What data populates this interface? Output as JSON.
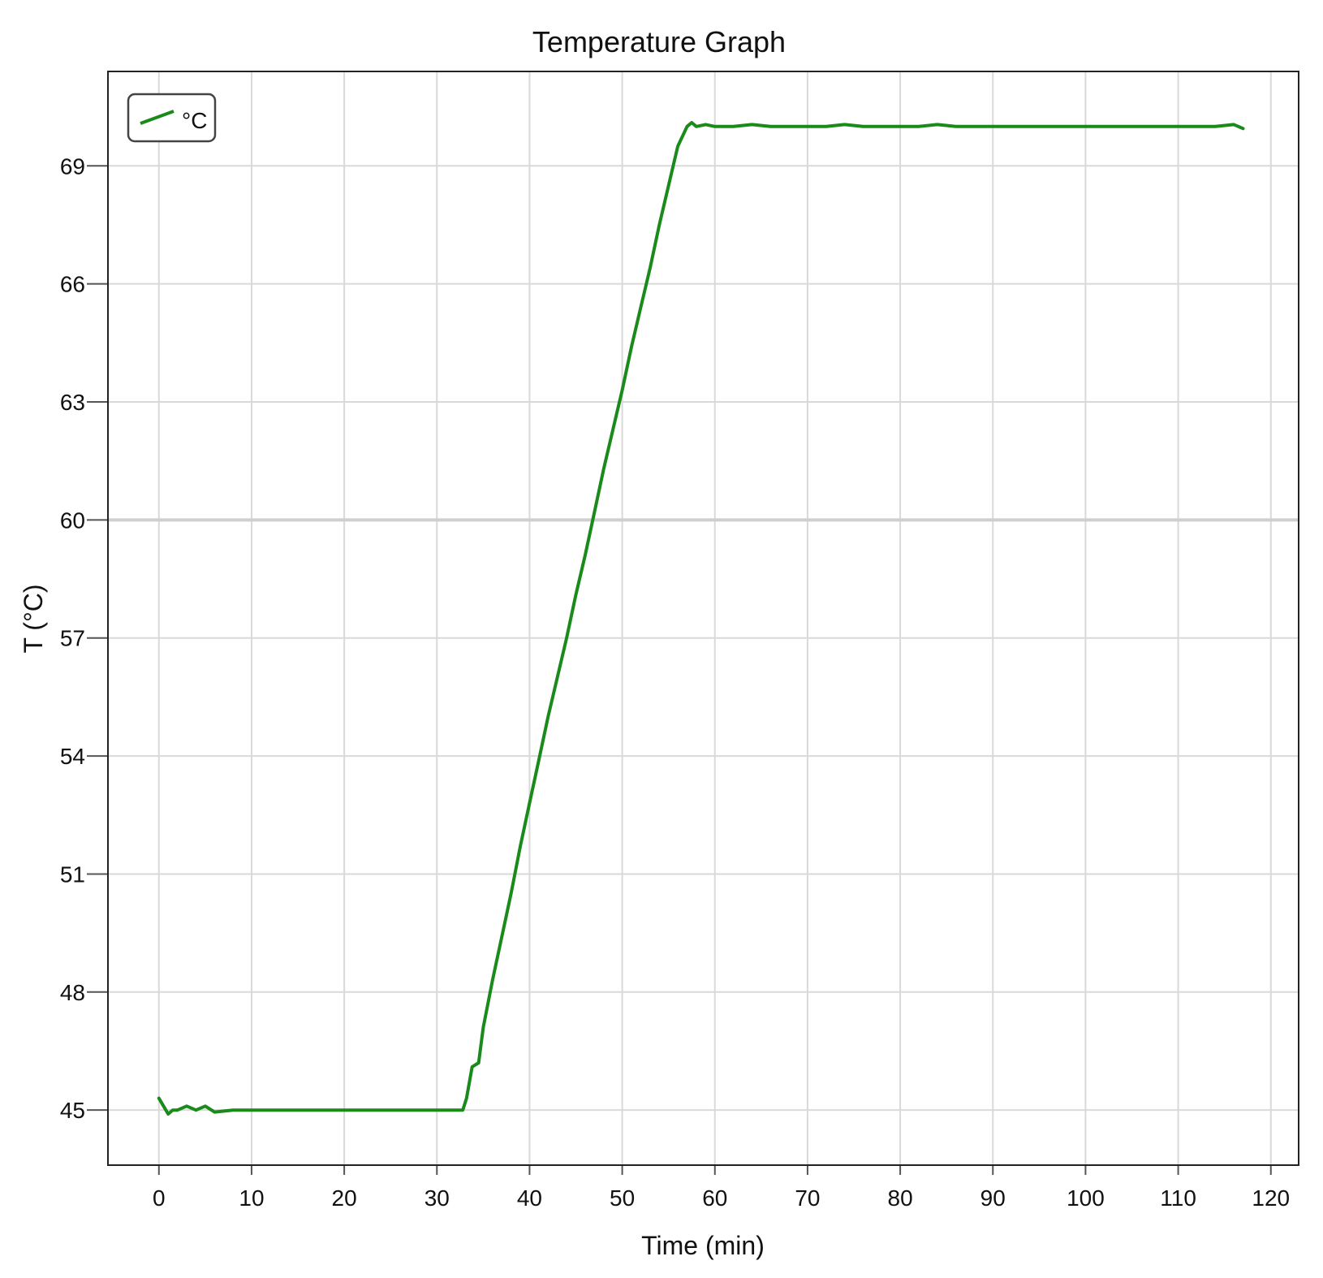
{
  "chart_data": {
    "type": "line",
    "title": "Temperature Graph",
    "xlabel": "Time (min)",
    "ylabel": "T (°C)",
    "xlim": [
      -5.5,
      123
    ],
    "ylim": [
      43.6,
      71.4
    ],
    "x_ticks": [
      0,
      10,
      20,
      30,
      40,
      50,
      60,
      70,
      80,
      90,
      100,
      110,
      120
    ],
    "y_ticks": [
      45,
      48,
      51,
      54,
      57,
      60,
      63,
      66,
      69
    ],
    "grid": true,
    "legend": {
      "position": "top-left",
      "entries": [
        "°C"
      ]
    },
    "series": [
      {
        "name": "°C",
        "color": "#1a8a1a",
        "x": [
          0,
          0.5,
          1,
          1.5,
          2,
          3,
          4,
          5,
          6,
          8,
          10,
          12,
          14,
          16,
          18,
          20,
          22,
          24,
          26,
          28,
          30,
          32,
          32.8,
          33.2,
          33.8,
          34.5,
          35,
          36,
          37,
          38,
          39,
          40,
          41,
          42,
          43,
          44,
          45,
          46,
          47,
          48,
          49,
          50,
          51,
          52,
          53,
          54,
          55,
          56,
          57,
          57.5,
          58,
          59,
          60,
          62,
          64,
          66,
          68,
          70,
          72,
          74,
          76,
          78,
          80,
          82,
          84,
          86,
          88,
          90,
          92,
          94,
          96,
          98,
          100,
          102,
          104,
          106,
          108,
          110,
          112,
          114,
          116,
          117
        ],
        "values": [
          45.3,
          45.1,
          44.9,
          45.0,
          45.0,
          45.1,
          45.0,
          45.1,
          44.95,
          45.0,
          45.0,
          45.0,
          45.0,
          45.0,
          45.0,
          45.0,
          45.0,
          45.0,
          45.0,
          45.0,
          45.0,
          45.0,
          45.0,
          45.3,
          46.1,
          46.2,
          47.1,
          48.3,
          49.4,
          50.5,
          51.7,
          52.8,
          53.9,
          55.0,
          56.0,
          57.0,
          58.1,
          59.1,
          60.2,
          61.3,
          62.3,
          63.3,
          64.4,
          65.4,
          66.4,
          67.5,
          68.5,
          69.5,
          70.0,
          70.1,
          70.0,
          70.05,
          70.0,
          70.0,
          70.05,
          70.0,
          70.0,
          70.0,
          70.0,
          70.05,
          70.0,
          70.0,
          70.0,
          70.0,
          70.05,
          70.0,
          70.0,
          70.0,
          70.0,
          70.0,
          70.0,
          70.0,
          70.0,
          70.0,
          70.0,
          70.0,
          70.0,
          70.0,
          70.0,
          70.0,
          70.05,
          69.95
        ]
      }
    ]
  }
}
